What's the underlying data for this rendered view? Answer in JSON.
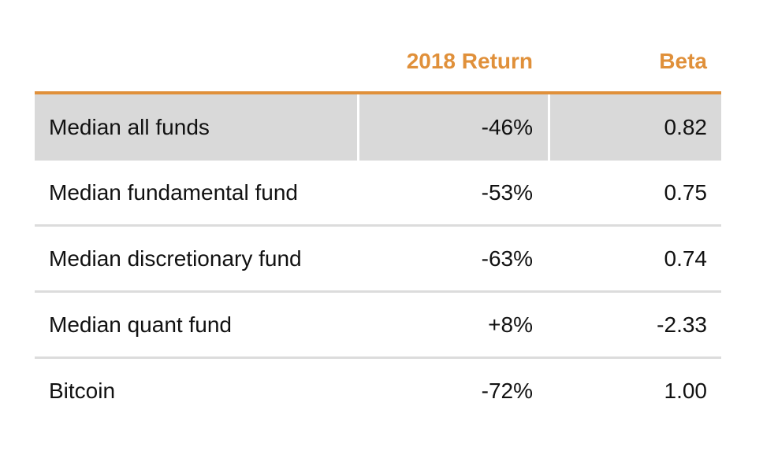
{
  "chart_data": {
    "type": "table",
    "columns": [
      "",
      "2018 Return",
      "Beta"
    ],
    "rows": [
      {
        "label": "Median all funds",
        "return": "-46%",
        "beta": "0.82",
        "highlight": true
      },
      {
        "label": "Median fundamental fund",
        "return": "-53%",
        "beta": "0.75",
        "highlight": false
      },
      {
        "label": "Median discretionary fund",
        "return": "-63%",
        "beta": "0.74",
        "highlight": false
      },
      {
        "label": "Median quant fund",
        "return": "+8%",
        "beta": "-2.33",
        "highlight": false
      },
      {
        "label": "Bitcoin",
        "return": "-72%",
        "beta": "1.00",
        "highlight": false
      }
    ],
    "accent_color": "#E0903A",
    "highlight_color": "#d9d9d9"
  }
}
